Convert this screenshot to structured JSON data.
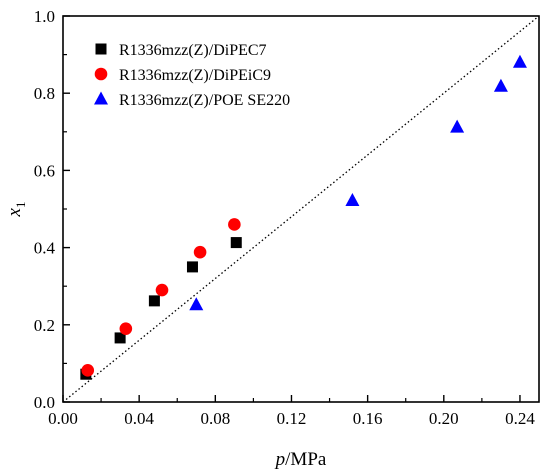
{
  "chart_data": {
    "type": "scatter",
    "xlabel_italic": "p",
    "xlabel_rest": "/MPa",
    "ylabel_main": "x",
    "ylabel_sub": "1",
    "xlim": [
      0.0,
      0.25
    ],
    "ylim": [
      0.0,
      1.0
    ],
    "xticks": [
      0.0,
      0.04,
      0.08,
      0.12,
      0.16,
      0.2,
      0.24
    ],
    "yticks": [
      0.0,
      0.2,
      0.4,
      0.6,
      0.8,
      1.0
    ],
    "xtick_labels": [
      "0.00",
      "0.04",
      "0.08",
      "0.12",
      "0.16",
      "0.20",
      "0.24"
    ],
    "ytick_labels": [
      "0.0",
      "0.2",
      "0.4",
      "0.6",
      "0.8",
      "1.0"
    ],
    "grid": false,
    "legend_position": "top-left",
    "reference_line": {
      "style": "dotted",
      "from": [
        0.0,
        0.0
      ],
      "to": [
        0.25,
        1.0
      ]
    },
    "series": [
      {
        "name": "R1336mzz(Z)/DiPEC7",
        "marker": "square",
        "color": "#000000",
        "x": [
          0.012,
          0.03,
          0.048,
          0.068,
          0.091
        ],
        "y": [
          0.072,
          0.166,
          0.262,
          0.35,
          0.413
        ]
      },
      {
        "name": "R1336mzz(Z)/DiPEiC9",
        "marker": "circle",
        "color": "#ff0000",
        "x": [
          0.013,
          0.033,
          0.052,
          0.072,
          0.09
        ],
        "y": [
          0.082,
          0.19,
          0.29,
          0.388,
          0.46
        ]
      },
      {
        "name": "R1336mzz(Z)/POE SE220",
        "marker": "triangle",
        "color": "#0000ff",
        "x": [
          0.07,
          0.152,
          0.207,
          0.23,
          0.24
        ],
        "y": [
          0.252,
          0.522,
          0.712,
          0.818,
          0.88
        ]
      }
    ]
  }
}
